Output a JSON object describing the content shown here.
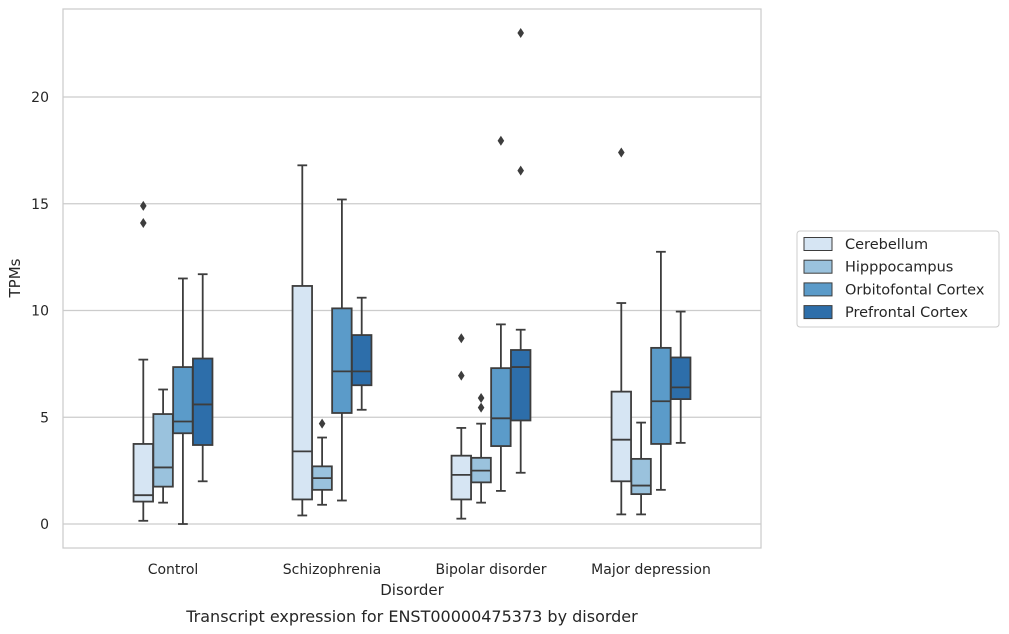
{
  "caption": "Transcript expression for ENST00000475373 by disorder",
  "chart_data": {
    "type": "box",
    "xlabel": "Disorder",
    "ylabel": "TPMs",
    "ylim": [
      -1.1,
      23.8
    ],
    "yticks": [
      0,
      5,
      10,
      15,
      20
    ],
    "grid": "horizontal",
    "legend_position": "right",
    "categories": [
      "Control",
      "Schizophrenia",
      "Bipolar disorder",
      "Major depression"
    ],
    "series": [
      {
        "name": "Cerebellum",
        "color": "#d6e5f3",
        "boxes": [
          {
            "whislo": 0.15,
            "q1": 1.05,
            "med": 1.35,
            "q3": 3.75,
            "whishi": 7.7,
            "fliers": [
              14.1,
              14.9
            ]
          },
          {
            "whislo": 0.4,
            "q1": 1.15,
            "med": 3.4,
            "q3": 11.15,
            "whishi": 16.8,
            "fliers": []
          },
          {
            "whislo": 0.25,
            "q1": 1.15,
            "med": 2.3,
            "q3": 3.2,
            "whishi": 4.5,
            "fliers": [
              6.95,
              8.7
            ]
          },
          {
            "whislo": 0.45,
            "q1": 2.0,
            "med": 3.95,
            "q3": 6.2,
            "whishi": 10.35,
            "fliers": [
              17.4
            ]
          }
        ]
      },
      {
        "name": "Hipppocampus",
        "color": "#9ac2dd",
        "boxes": [
          {
            "whislo": 1.0,
            "q1": 1.75,
            "med": 2.65,
            "q3": 5.15,
            "whishi": 6.3,
            "fliers": []
          },
          {
            "whislo": 0.9,
            "q1": 1.6,
            "med": 2.15,
            "q3": 2.7,
            "whishi": 4.05,
            "fliers": [
              4.7
            ]
          },
          {
            "whislo": 1.0,
            "q1": 1.95,
            "med": 2.5,
            "q3": 3.1,
            "whishi": 4.7,
            "fliers": [
              5.45,
              5.9
            ]
          },
          {
            "whislo": 0.45,
            "q1": 1.4,
            "med": 1.8,
            "q3": 3.05,
            "whishi": 4.75,
            "fliers": []
          }
        ]
      },
      {
        "name": "Orbitofontal Cortex",
        "color": "#5b9bc9",
        "boxes": [
          {
            "whislo": 0.0,
            "q1": 4.25,
            "med": 4.8,
            "q3": 7.35,
            "whishi": 11.5,
            "fliers": []
          },
          {
            "whislo": 1.1,
            "q1": 5.2,
            "med": 7.15,
            "q3": 10.1,
            "whishi": 15.2,
            "fliers": []
          },
          {
            "whislo": 1.55,
            "q1": 3.65,
            "med": 4.95,
            "q3": 7.3,
            "whishi": 9.35,
            "fliers": [
              17.95
            ]
          },
          {
            "whislo": 1.6,
            "q1": 3.75,
            "med": 5.75,
            "q3": 8.25,
            "whishi": 12.75,
            "fliers": []
          }
        ]
      },
      {
        "name": "Prefrontal Cortex",
        "color": "#2d6eaa",
        "boxes": [
          {
            "whislo": 2.0,
            "q1": 3.7,
            "med": 5.6,
            "q3": 7.75,
            "whishi": 11.7,
            "fliers": []
          },
          {
            "whislo": 5.35,
            "q1": 6.5,
            "med": 7.15,
            "q3": 8.85,
            "whishi": 10.6,
            "fliers": []
          },
          {
            "whislo": 2.4,
            "q1": 4.85,
            "med": 7.35,
            "q3": 8.15,
            "whishi": 9.1,
            "fliers": [
              16.55,
              23.0
            ]
          },
          {
            "whislo": 3.8,
            "q1": 5.85,
            "med": 6.4,
            "q3": 7.8,
            "whishi": 9.95,
            "fliers": []
          }
        ]
      }
    ]
  }
}
